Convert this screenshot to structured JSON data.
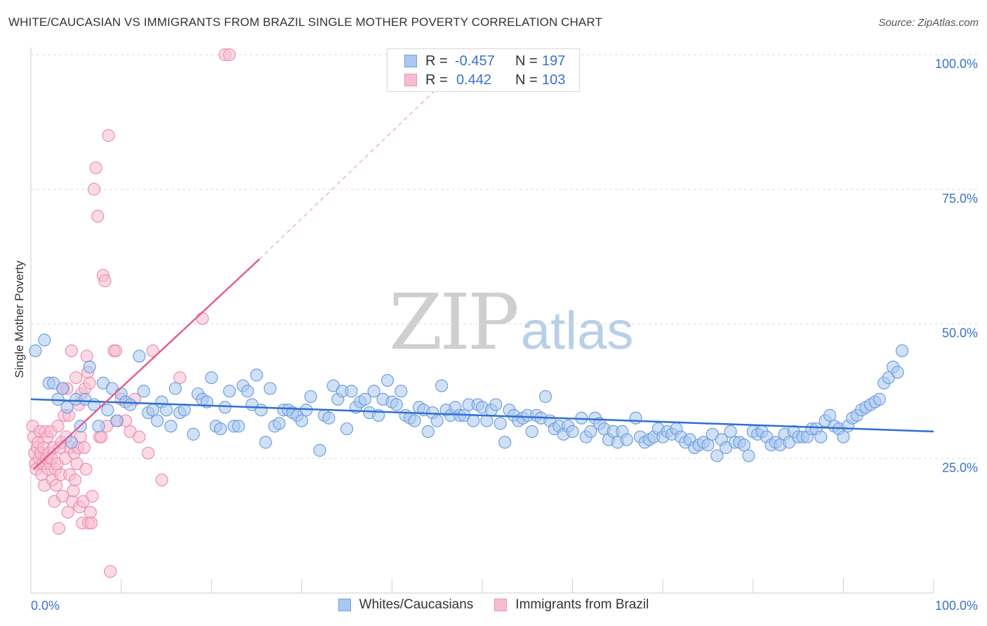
{
  "header": {
    "title": "WHITE/CAUCASIAN VS IMMIGRANTS FROM BRAZIL SINGLE MOTHER POVERTY CORRELATION CHART",
    "source": "Source: ZipAtlas.com"
  },
  "watermark": {
    "zip": "ZIP",
    "atlas": "atlas"
  },
  "legend": {
    "rows": [
      {
        "r_label": "R =",
        "r_value": "-0.457",
        "n_label": "N =",
        "n_value": "197"
      },
      {
        "r_label": "R =",
        "r_value": "0.442",
        "n_label": "N =",
        "n_value": "103"
      }
    ]
  },
  "colors": {
    "blue_fill": "#a9c8ef",
    "blue_stroke": "#6f9ee0",
    "blue_line": "#2f6fd0",
    "pink_fill": "#f6bdd0",
    "pink_stroke": "#ee8fb0",
    "pink_line": "#e0608e",
    "tick_text": "#3a73c9",
    "grid": "#dddddd"
  },
  "chart_data": {
    "type": "scatter",
    "title": "WHITE/CAUCASIAN VS IMMIGRANTS FROM BRAZIL SINGLE MOTHER POVERTY CORRELATION CHART",
    "xlabel": "",
    "ylabel": "Single Mother Poverty",
    "xlim": [
      0,
      100
    ],
    "ylim": [
      0,
      100
    ],
    "x_tick_labels": [
      "0.0%",
      "100.0%"
    ],
    "y_ticks": [
      25,
      50,
      75,
      100
    ],
    "y_tick_labels": [
      "25.0%",
      "50.0%",
      "75.0%",
      "100.0%"
    ],
    "grid": true,
    "legend_position": "top-center",
    "series": [
      {
        "name": "Whites/Caucasians",
        "r": -0.457,
        "n": 197,
        "trend": {
          "x": [
            0,
            100
          ],
          "y": [
            36.0,
            30.0
          ]
        },
        "points": [
          [
            0.5,
            45
          ],
          [
            1.5,
            47
          ],
          [
            2,
            39
          ],
          [
            2.5,
            39
          ],
          [
            3,
            36
          ],
          [
            3.5,
            38
          ],
          [
            4,
            34.5
          ],
          [
            4.5,
            28
          ],
          [
            5,
            36
          ],
          [
            5.5,
            31
          ],
          [
            6,
            36
          ],
          [
            6.5,
            42
          ],
          [
            7,
            35
          ],
          [
            7.5,
            31
          ],
          [
            8,
            39
          ],
          [
            8.5,
            34
          ],
          [
            9,
            38
          ],
          [
            9.5,
            32
          ],
          [
            10,
            37
          ],
          [
            10.5,
            35.5
          ],
          [
            11,
            35
          ],
          [
            12,
            44
          ],
          [
            12.5,
            37.5
          ],
          [
            13,
            33.5
          ],
          [
            13.5,
            34
          ],
          [
            14,
            32
          ],
          [
            14.5,
            35.5
          ],
          [
            15,
            34
          ],
          [
            15.5,
            31
          ],
          [
            16,
            38
          ],
          [
            16.5,
            33.5
          ],
          [
            17,
            34
          ],
          [
            18,
            29.5
          ],
          [
            18.5,
            37
          ],
          [
            19,
            36
          ],
          [
            19.5,
            35.5
          ],
          [
            20,
            40
          ],
          [
            20.5,
            31
          ],
          [
            21,
            30.5
          ],
          [
            21.5,
            34.5
          ],
          [
            22,
            37.5
          ],
          [
            22.5,
            31
          ],
          [
            23,
            31
          ],
          [
            23.5,
            38.5
          ],
          [
            24,
            37.5
          ],
          [
            24.5,
            35
          ],
          [
            25,
            40.5
          ],
          [
            25.5,
            34
          ],
          [
            26,
            28
          ],
          [
            26.5,
            38
          ],
          [
            27,
            31
          ],
          [
            27.5,
            31.5
          ],
          [
            28,
            34
          ],
          [
            28.5,
            34
          ],
          [
            29,
            33.5
          ],
          [
            29.5,
            33
          ],
          [
            30,
            32
          ],
          [
            30.5,
            34
          ],
          [
            31,
            36.5
          ],
          [
            32,
            26.5
          ],
          [
            32.5,
            33
          ],
          [
            33,
            32.5
          ],
          [
            33.5,
            38.5
          ],
          [
            34,
            36
          ],
          [
            34.5,
            37.5
          ],
          [
            35,
            30.5
          ],
          [
            35.5,
            37.5
          ],
          [
            36,
            34.5
          ],
          [
            36.5,
            35.5
          ],
          [
            37,
            36
          ],
          [
            37.5,
            33.5
          ],
          [
            38,
            37.5
          ],
          [
            38.5,
            33
          ],
          [
            39,
            36
          ],
          [
            39.5,
            39.5
          ],
          [
            40,
            35.5
          ],
          [
            40.5,
            35
          ],
          [
            41,
            37.5
          ],
          [
            41.5,
            33
          ],
          [
            42,
            32.5
          ],
          [
            42.5,
            32
          ],
          [
            43,
            34.5
          ],
          [
            43.5,
            34
          ],
          [
            44,
            30
          ],
          [
            44.5,
            33.5
          ],
          [
            45,
            32
          ],
          [
            45.5,
            38.5
          ],
          [
            46,
            34
          ],
          [
            46.5,
            33
          ],
          [
            47,
            34.5
          ],
          [
            47.5,
            33
          ],
          [
            48,
            33
          ],
          [
            48.5,
            35
          ],
          [
            49,
            32
          ],
          [
            49.5,
            35
          ],
          [
            50,
            34.5
          ],
          [
            50.5,
            32
          ],
          [
            51,
            34
          ],
          [
            51.5,
            35
          ],
          [
            52,
            31.5
          ],
          [
            52.5,
            28
          ],
          [
            53,
            34
          ],
          [
            53.5,
            33
          ],
          [
            54,
            32
          ],
          [
            54.5,
            32.5
          ],
          [
            55,
            33
          ],
          [
            55.5,
            30
          ],
          [
            56,
            33
          ],
          [
            56.5,
            32.5
          ],
          [
            57,
            36.5
          ],
          [
            57.5,
            32
          ],
          [
            58,
            30.5
          ],
          [
            58.5,
            31
          ],
          [
            59,
            29.5
          ],
          [
            59.5,
            31
          ],
          [
            60,
            30
          ],
          [
            61,
            32.5
          ],
          [
            61.5,
            29
          ],
          [
            62,
            30
          ],
          [
            62.5,
            32.5
          ],
          [
            63,
            31.5
          ],
          [
            63.5,
            30.5
          ],
          [
            64,
            28.5
          ],
          [
            64.5,
            30
          ],
          [
            65,
            28
          ],
          [
            65.5,
            30
          ],
          [
            66,
            28.5
          ],
          [
            67,
            32.5
          ],
          [
            67.5,
            29
          ],
          [
            68,
            28
          ],
          [
            68.5,
            28.5
          ],
          [
            69,
            29
          ],
          [
            69.5,
            30.5
          ],
          [
            70,
            29
          ],
          [
            70.5,
            30
          ],
          [
            71,
            29.5
          ],
          [
            71.5,
            30.5
          ],
          [
            72,
            29
          ],
          [
            72.5,
            28
          ],
          [
            73,
            28.5
          ],
          [
            73.5,
            27
          ],
          [
            74,
            27.5
          ],
          [
            74.5,
            28
          ],
          [
            75,
            27.5
          ],
          [
            75.5,
            29.5
          ],
          [
            76,
            25.5
          ],
          [
            76.5,
            28.5
          ],
          [
            77,
            27
          ],
          [
            77.5,
            30
          ],
          [
            78,
            28
          ],
          [
            78.5,
            28
          ],
          [
            79,
            27.5
          ],
          [
            79.5,
            25.5
          ],
          [
            80,
            30
          ],
          [
            80.5,
            29.5
          ],
          [
            81,
            30
          ],
          [
            81.5,
            29
          ],
          [
            82,
            27.5
          ],
          [
            82.5,
            28
          ],
          [
            83,
            27.5
          ],
          [
            83.5,
            29.5
          ],
          [
            84,
            28
          ],
          [
            84.5,
            30
          ],
          [
            85,
            29
          ],
          [
            85.5,
            29
          ],
          [
            86,
            29
          ],
          [
            86.5,
            30.5
          ],
          [
            87,
            30.5
          ],
          [
            87.5,
            29
          ],
          [
            88,
            32
          ],
          [
            88.5,
            33
          ],
          [
            89,
            31
          ],
          [
            89.5,
            30.5
          ],
          [
            90,
            29
          ],
          [
            90.5,
            31
          ],
          [
            91,
            32.5
          ],
          [
            91.5,
            33
          ],
          [
            92,
            34
          ],
          [
            92.5,
            34.5
          ],
          [
            93,
            35
          ],
          [
            93.5,
            35.5
          ],
          [
            94,
            36
          ],
          [
            94.5,
            39
          ],
          [
            95,
            40
          ],
          [
            95.5,
            42
          ],
          [
            96,
            41
          ],
          [
            96.5,
            45
          ]
        ]
      },
      {
        "name": "Immigrants from Brazil",
        "r": 0.442,
        "n": 103,
        "trend": {
          "x": [
            0.3,
            25.3
          ],
          "y": [
            23.0,
            62.0
          ],
          "dashed_to": {
            "x": 47,
            "y": 97
          }
        },
        "points": [
          [
            0.2,
            31
          ],
          [
            0.3,
            29
          ],
          [
            0.4,
            26
          ],
          [
            0.5,
            24
          ],
          [
            0.6,
            23
          ],
          [
            0.7,
            27
          ],
          [
            0.8,
            28
          ],
          [
            0.9,
            25
          ],
          [
            1.0,
            30
          ],
          [
            1.1,
            26
          ],
          [
            1.2,
            22
          ],
          [
            1.3,
            24
          ],
          [
            1.4,
            27
          ],
          [
            1.5,
            20
          ],
          [
            1.6,
            30
          ],
          [
            1.7,
            25
          ],
          [
            1.8,
            29
          ],
          [
            1.9,
            23
          ],
          [
            2.0,
            26
          ],
          [
            2.1,
            24
          ],
          [
            2.2,
            30
          ],
          [
            2.3,
            25
          ],
          [
            2.4,
            21
          ],
          [
            2.5,
            27
          ],
          [
            2.6,
            17
          ],
          [
            2.7,
            23
          ],
          [
            2.8,
            20
          ],
          [
            2.9,
            24
          ],
          [
            3.0,
            31
          ],
          [
            3.1,
            12
          ],
          [
            3.2,
            27
          ],
          [
            3.3,
            22
          ],
          [
            3.4,
            28
          ],
          [
            3.5,
            18
          ],
          [
            3.6,
            38
          ],
          [
            3.7,
            33
          ],
          [
            3.8,
            25
          ],
          [
            3.9,
            29
          ],
          [
            4.0,
            38
          ],
          [
            4.1,
            15
          ],
          [
            4.2,
            33
          ],
          [
            4.3,
            22
          ],
          [
            4.4,
            27
          ],
          [
            4.5,
            45
          ],
          [
            4.6,
            17
          ],
          [
            4.7,
            19
          ],
          [
            4.8,
            26
          ],
          [
            4.9,
            21
          ],
          [
            5.0,
            40
          ],
          [
            5.1,
            24
          ],
          [
            5.2,
            27
          ],
          [
            5.3,
            35
          ],
          [
            5.4,
            16
          ],
          [
            5.5,
            29
          ],
          [
            5.6,
            37
          ],
          [
            5.7,
            13
          ],
          [
            5.8,
            17
          ],
          [
            5.9,
            27
          ],
          [
            6.0,
            38
          ],
          [
            6.1,
            23
          ],
          [
            6.2,
            44
          ],
          [
            6.3,
            41
          ],
          [
            6.4,
            13
          ],
          [
            6.5,
            39
          ],
          [
            6.6,
            15
          ],
          [
            6.7,
            13
          ],
          [
            6.8,
            18
          ],
          [
            7.0,
            75
          ],
          [
            7.2,
            79
          ],
          [
            7.4,
            70
          ],
          [
            7.6,
            29
          ],
          [
            7.8,
            29
          ],
          [
            8.0,
            59
          ],
          [
            8.2,
            58
          ],
          [
            8.4,
            31
          ],
          [
            8.6,
            85
          ],
          [
            8.8,
            4
          ],
          [
            9.2,
            45
          ],
          [
            9.4,
            45
          ],
          [
            9.6,
            32
          ],
          [
            10.0,
            36
          ],
          [
            10.5,
            32
          ],
          [
            11.0,
            30
          ],
          [
            11.5,
            36
          ],
          [
            12.0,
            29
          ],
          [
            13.0,
            26
          ],
          [
            13.5,
            45
          ],
          [
            14.5,
            21
          ],
          [
            16.5,
            40
          ],
          [
            19.0,
            51
          ],
          [
            21.5,
            100
          ],
          [
            22.0,
            100
          ]
        ]
      }
    ]
  },
  "bottom_legend": {
    "items": [
      {
        "label": "Whites/Caucasians"
      },
      {
        "label": "Immigrants from Brazil"
      }
    ]
  }
}
